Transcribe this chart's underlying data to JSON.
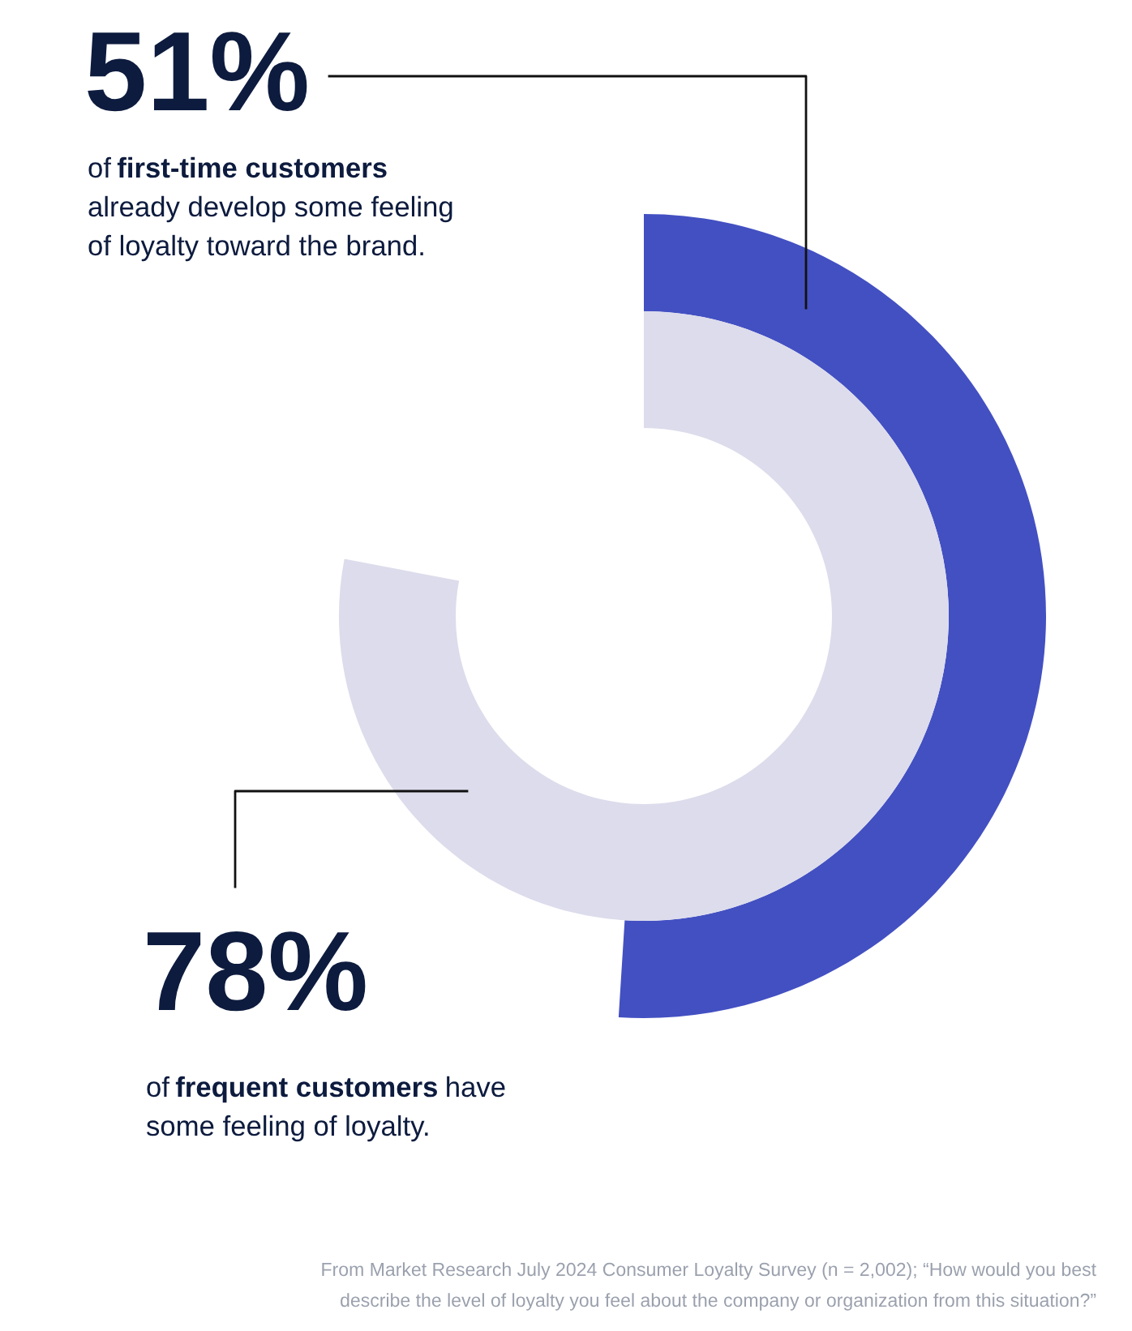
{
  "chart_data": {
    "type": "other",
    "categories": [
      "first-time customers",
      "frequent customers"
    ],
    "values": [
      51,
      78
    ],
    "value_labels": [
      "51%",
      "78%"
    ],
    "colors": [
      "#4350c2",
      "#dcdcec"
    ],
    "annotations": [
      "of",
      "already develop some feeling",
      "of loyalty toward the brand.",
      "of",
      "have",
      "some feeling of loyalty.",
      "From Market Research July 2024 Consumer Loyalty Survey (n = 2,002); “How would you best",
      "describe the level of loyalty you feel about the company or organization from this situation?”"
    ]
  }
}
